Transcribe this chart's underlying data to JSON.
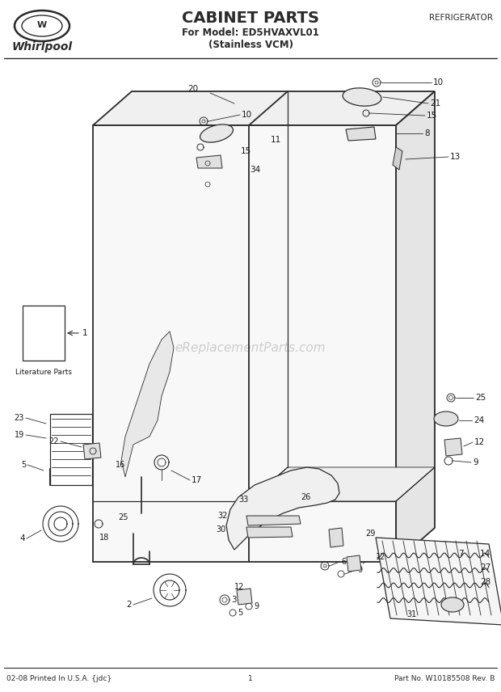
{
  "title": "CABINET PARTS",
  "subtitle_line1": "For Model: ED5HVAXVL01",
  "subtitle_line2": "(Stainless VCM)",
  "top_right_label": "REFRIGERATOR",
  "brand": "Whirlpool",
  "footer_left": "02-08 Printed In U.S.A. {jdc}",
  "footer_center": "1",
  "footer_right": "Part No. W10185508 Rev. B",
  "watermark": "eReplacementParts.com",
  "lit_label": "Literature Parts",
  "bg_color": "#ffffff",
  "line_color": "#2a2a2a",
  "label_color": "#1a1a1a",
  "watermark_color": "#bbbbbb"
}
